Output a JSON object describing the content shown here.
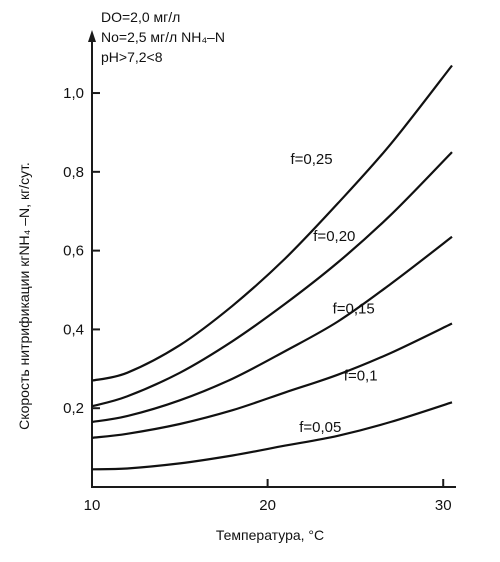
{
  "chart_data": {
    "type": "line",
    "xlabel": "Температура, °С",
    "ylabel": "Скорость нитрификации кгNH₄ –N, кг/сут.",
    "xlim": [
      10,
      30.5
    ],
    "ylim": [
      0,
      1.16
    ],
    "xticks": [
      {
        "value": 10,
        "label": "10"
      },
      {
        "value": 20,
        "label": "20"
      },
      {
        "value": 30,
        "label": "30"
      }
    ],
    "yticks": [
      {
        "value": 0.2,
        "label": "0,2"
      },
      {
        "value": 0.4,
        "label": "0,4"
      },
      {
        "value": 0.6,
        "label": "0,6"
      },
      {
        "value": 0.8,
        "label": "0,8"
      },
      {
        "value": 1.0,
        "label": "1,0"
      }
    ],
    "conditions": [
      "DO=2,0 мг/л",
      "No=2,5 мг/л NH₄–N",
      "pH>7,2<8"
    ],
    "series": [
      {
        "name": "f=0,25",
        "x": [
          10,
          12,
          15,
          18,
          21,
          24,
          27,
          30.5
        ],
        "y": [
          0.27,
          0.29,
          0.36,
          0.46,
          0.58,
          0.72,
          0.87,
          1.07
        ],
        "label_at": [
          22.5,
          0.82
        ]
      },
      {
        "name": "f=0,20",
        "x": [
          10,
          12,
          15,
          18,
          21,
          24,
          27,
          30.5
        ],
        "y": [
          0.205,
          0.23,
          0.29,
          0.37,
          0.465,
          0.57,
          0.69,
          0.85
        ],
        "label_at": [
          23.8,
          0.625
        ]
      },
      {
        "name": "f=0,15",
        "x": [
          10,
          12,
          15,
          18,
          21,
          24,
          27,
          30.5
        ],
        "y": [
          0.165,
          0.18,
          0.22,
          0.275,
          0.345,
          0.42,
          0.515,
          0.635
        ],
        "label_at": [
          24.9,
          0.44
        ]
      },
      {
        "name": "f=0,1",
        "x": [
          10,
          12,
          15,
          18,
          21,
          24,
          27,
          30.5
        ],
        "y": [
          0.125,
          0.135,
          0.16,
          0.195,
          0.24,
          0.285,
          0.34,
          0.415
        ],
        "label_at": [
          25.3,
          0.27
        ]
      },
      {
        "name": "f=0,05",
        "x": [
          10,
          12,
          15,
          18,
          21,
          24,
          27,
          30.5
        ],
        "y": [
          0.045,
          0.047,
          0.06,
          0.08,
          0.105,
          0.13,
          0.165,
          0.215
        ],
        "label_at": [
          23.0,
          0.14
        ]
      }
    ]
  }
}
